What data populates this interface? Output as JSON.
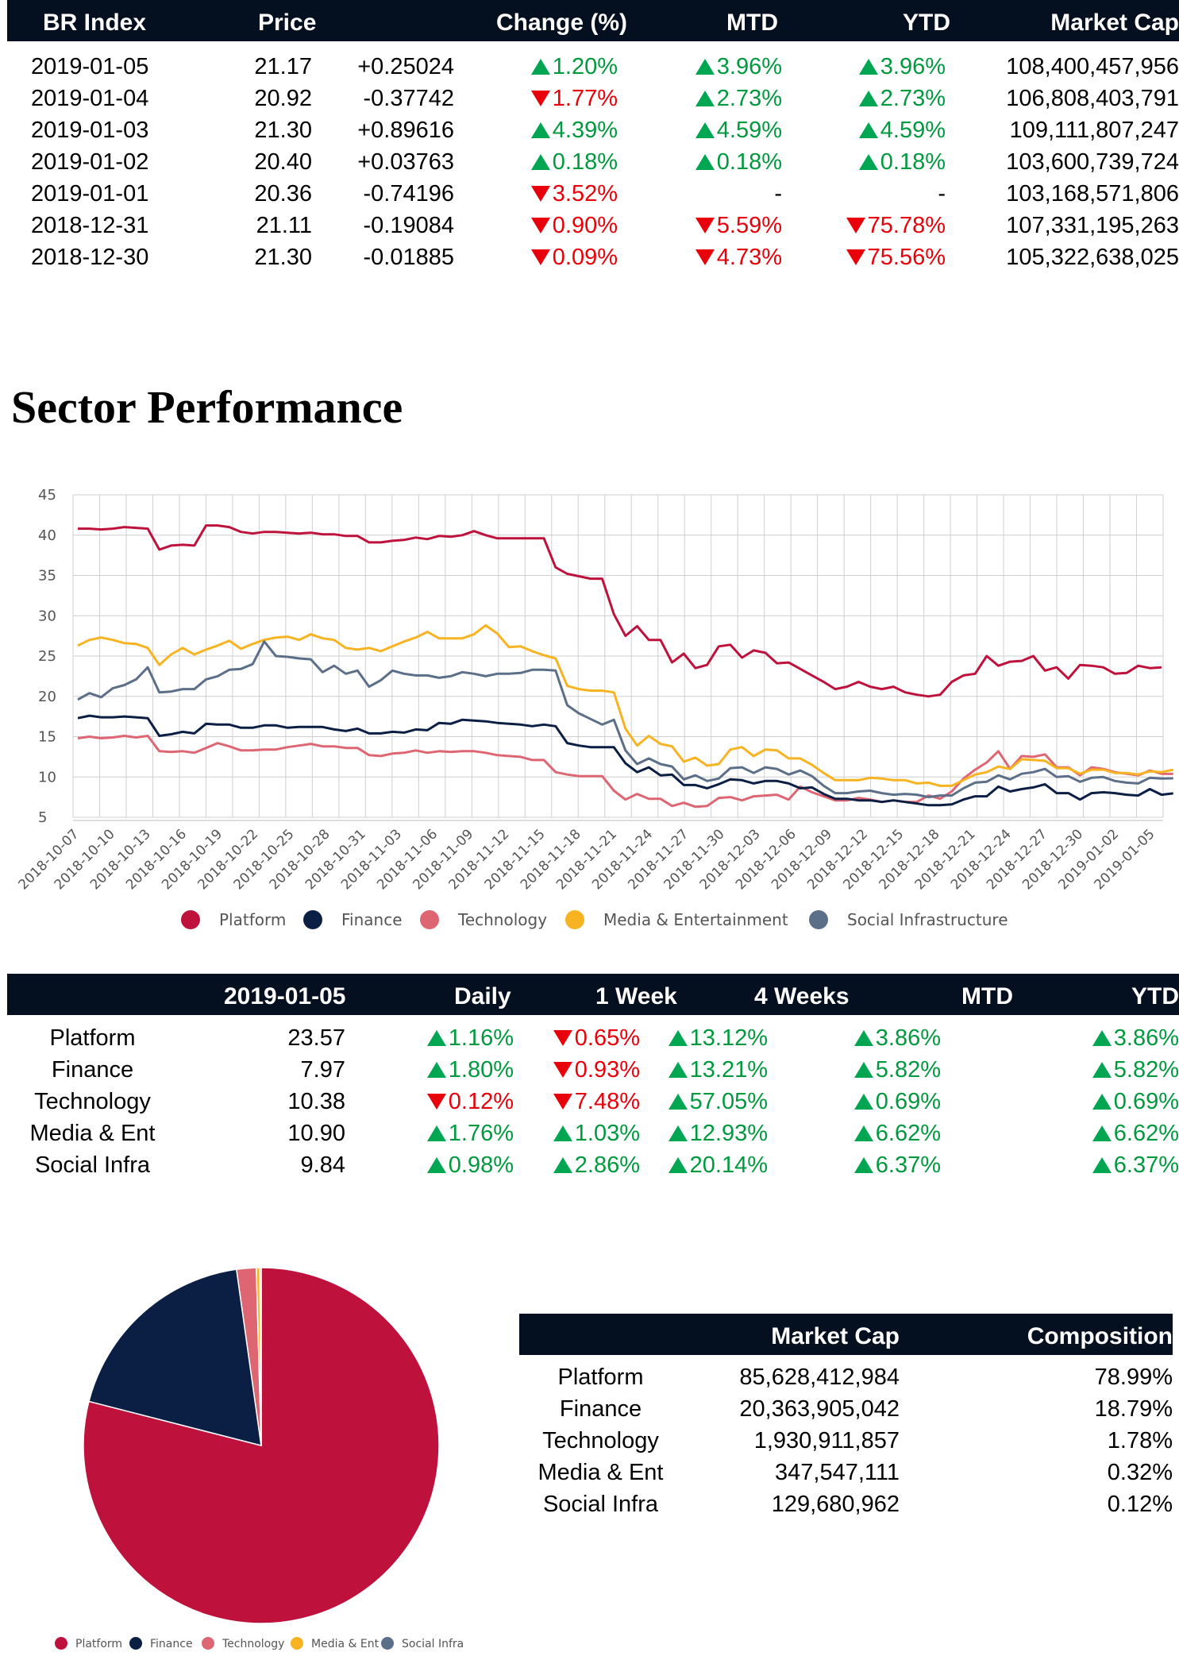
{
  "index_table": {
    "headers": [
      "BR Index",
      "Price",
      "Change (%)",
      "MTD",
      "YTD",
      "Market Cap"
    ],
    "rows": [
      {
        "date": "2019-01-05",
        "price": "21.17",
        "change": "+0.25024",
        "pct": "1.20%",
        "pct_dir": "up",
        "mtd": "3.96%",
        "mtd_dir": "up",
        "ytd": "3.96%",
        "ytd_dir": "up",
        "cap": "108,400,457,956"
      },
      {
        "date": "2019-01-04",
        "price": "20.92",
        "change": "-0.37742",
        "pct": "1.77%",
        "pct_dir": "down",
        "mtd": "2.73%",
        "mtd_dir": "up",
        "ytd": "2.73%",
        "ytd_dir": "up",
        "cap": "106,808,403,791"
      },
      {
        "date": "2019-01-03",
        "price": "21.30",
        "change": "+0.89616",
        "pct": "4.39%",
        "pct_dir": "up",
        "mtd": "4.59%",
        "mtd_dir": "up",
        "ytd": "4.59%",
        "ytd_dir": "up",
        "cap": "109,111,807,247"
      },
      {
        "date": "2019-01-02",
        "price": "20.40",
        "change": "+0.03763",
        "pct": "0.18%",
        "pct_dir": "up",
        "mtd": "0.18%",
        "mtd_dir": "up",
        "ytd": "0.18%",
        "ytd_dir": "up",
        "cap": "103,600,739,724"
      },
      {
        "date": "2019-01-01",
        "price": "20.36",
        "change": "-0.74196",
        "pct": "3.52%",
        "pct_dir": "down",
        "mtd": "-",
        "mtd_dir": "none",
        "ytd": "-",
        "ytd_dir": "none",
        "cap": "103,168,571,806"
      },
      {
        "date": "2018-12-31",
        "price": "21.11",
        "change": "-0.19084",
        "pct": "0.90%",
        "pct_dir": "down",
        "mtd": "5.59%",
        "mtd_dir": "down",
        "ytd": "75.78%",
        "ytd_dir": "down",
        "cap": "107,331,195,263"
      },
      {
        "date": "2018-12-30",
        "price": "21.30",
        "change": "-0.01885",
        "pct": "0.09%",
        "pct_dir": "down",
        "mtd": "4.73%",
        "mtd_dir": "down",
        "ytd": "75.56%",
        "ytd_dir": "down",
        "cap": "105,322,638,025"
      }
    ]
  },
  "section_title": "Sector Performance",
  "colors": {
    "header_bg": "#040f1f",
    "up": "#009a3e",
    "down": "#e8000b",
    "platform": "#be123c",
    "finance": "#0b1f45",
    "technology": "#de6672",
    "media": "#f7b321",
    "social": "#5c6f88"
  },
  "sector_table": {
    "headers": [
      "",
      "2019-01-05",
      "Daily",
      "1 Week",
      "4 Weeks",
      "MTD",
      "YTD"
    ],
    "rows": [
      {
        "name": "Platform",
        "value": "23.57",
        "daily": "1.16%",
        "daily_dir": "up",
        "week": "0.65%",
        "week_dir": "down",
        "weeks4": "13.12%",
        "weeks4_dir": "up",
        "mtd": "3.86%",
        "mtd_dir": "up",
        "ytd": "3.86%",
        "ytd_dir": "up"
      },
      {
        "name": "Finance",
        "value": "7.97",
        "daily": "1.80%",
        "daily_dir": "up",
        "week": "0.93%",
        "week_dir": "down",
        "weeks4": "13.21%",
        "weeks4_dir": "up",
        "mtd": "5.82%",
        "mtd_dir": "up",
        "ytd": "5.82%",
        "ytd_dir": "up"
      },
      {
        "name": "Technology",
        "value": "10.38",
        "daily": "0.12%",
        "daily_dir": "down",
        "week": "7.48%",
        "week_dir": "down",
        "weeks4": "57.05%",
        "weeks4_dir": "up",
        "mtd": "0.69%",
        "mtd_dir": "up",
        "ytd": "0.69%",
        "ytd_dir": "up"
      },
      {
        "name": "Media & Ent",
        "value": "10.90",
        "daily": "1.76%",
        "daily_dir": "up",
        "week": "1.03%",
        "week_dir": "up",
        "weeks4": "12.93%",
        "weeks4_dir": "up",
        "mtd": "6.62%",
        "mtd_dir": "up",
        "ytd": "6.62%",
        "ytd_dir": "up"
      },
      {
        "name": "Social Infra",
        "value": "9.84",
        "daily": "0.98%",
        "daily_dir": "up",
        "week": "2.86%",
        "week_dir": "up",
        "weeks4": "20.14%",
        "weeks4_dir": "up",
        "mtd": "6.37%",
        "mtd_dir": "up",
        "ytd": "6.37%",
        "ytd_dir": "up"
      }
    ]
  },
  "cap_table": {
    "headers": [
      "",
      "Market Cap",
      "Composition"
    ],
    "rows": [
      {
        "name": "Platform",
        "cap": "85,628,412,984",
        "comp": "78.99%"
      },
      {
        "name": "Finance",
        "cap": "20,363,905,042",
        "comp": "18.79%"
      },
      {
        "name": "Technology",
        "cap": "1,930,911,857",
        "comp": "1.78%"
      },
      {
        "name": "Media & Ent",
        "cap": "347,547,111",
        "comp": "0.32%"
      },
      {
        "name": "Social Infra",
        "cap": "129,680,962",
        "comp": "0.12%"
      }
    ]
  },
  "chart_data": [
    {
      "type": "line",
      "title": "Sector Performance",
      "xlabel": "",
      "ylabel": "",
      "ylim": [
        5,
        45
      ],
      "yticks": [
        5,
        10,
        15,
        20,
        25,
        30,
        35,
        40,
        45
      ],
      "x_tick_labels": [
        "2018-10-07",
        "2018-10-10",
        "2018-10-13",
        "2018-10-16",
        "2018-10-19",
        "2018-10-22",
        "2018-10-25",
        "2018-10-28",
        "2018-10-31",
        "2018-11-03",
        "2018-11-06",
        "2018-11-09",
        "2018-11-12",
        "2018-11-15",
        "2018-11-18",
        "2018-11-21",
        "2018-11-24",
        "2018-11-27",
        "2018-11-30",
        "2018-12-03",
        "2018-12-06",
        "2018-12-09",
        "2018-12-12",
        "2018-12-15",
        "2018-12-18",
        "2018-12-21",
        "2018-12-24",
        "2018-12-27",
        "2018-12-30",
        "2019-01-02",
        "2019-01-05"
      ],
      "grid": true,
      "legend_position": "bottom",
      "series": [
        {
          "name": "Platform",
          "color": "#be123c",
          "values": [
            40.8,
            40.8,
            40.7,
            40.8,
            41.0,
            40.9,
            40.8,
            38.2,
            38.7,
            38.8,
            38.7,
            41.2,
            41.2,
            41.0,
            40.4,
            40.2,
            40.4,
            40.4,
            40.3,
            40.2,
            40.3,
            40.1,
            40.1,
            39.9,
            39.9,
            39.1,
            39.1,
            39.3,
            39.4,
            39.7,
            39.5,
            39.9,
            39.8,
            40.0,
            40.5,
            40.0,
            39.6,
            39.6,
            39.6,
            39.6,
            39.6,
            36.0,
            35.2,
            34.9,
            34.6,
            34.6,
            30.2,
            27.5,
            28.7,
            27.0,
            27.0,
            24.2,
            25.3,
            23.5,
            23.9,
            26.2,
            26.4,
            24.8,
            25.7,
            25.4,
            24.1,
            24.2,
            23.4,
            22.6,
            21.8,
            20.9,
            21.2,
            21.8,
            21.2,
            20.9,
            21.2,
            20.5,
            20.2,
            20.0,
            20.2,
            21.8,
            22.6,
            22.8,
            25.0,
            23.8,
            24.3,
            24.4,
            25.0,
            23.2,
            23.6,
            22.2,
            23.9,
            23.8,
            23.6,
            22.8,
            22.9,
            23.8,
            23.5,
            23.6
          ]
        },
        {
          "name": "Finance",
          "color": "#0b1f45",
          "values": [
            17.3,
            17.6,
            17.4,
            17.4,
            17.5,
            17.4,
            17.3,
            15.1,
            15.3,
            15.6,
            15.4,
            16.6,
            16.5,
            16.5,
            16.1,
            16.1,
            16.4,
            16.4,
            16.1,
            16.2,
            16.2,
            16.2,
            15.9,
            15.7,
            16.0,
            15.4,
            15.4,
            15.6,
            15.5,
            15.9,
            15.8,
            16.7,
            16.6,
            17.1,
            17.0,
            16.9,
            16.7,
            16.6,
            16.5,
            16.3,
            16.5,
            16.3,
            14.2,
            13.9,
            13.7,
            13.7,
            13.7,
            11.7,
            10.6,
            11.2,
            10.2,
            10.3,
            9.0,
            9.0,
            8.6,
            9.1,
            9.7,
            9.6,
            9.2,
            9.5,
            9.5,
            9.2,
            8.6,
            8.7,
            7.9,
            7.3,
            7.3,
            7.1,
            7.1,
            6.9,
            7.1,
            6.9,
            6.7,
            6.5,
            6.5,
            6.6,
            7.2,
            7.6,
            7.6,
            8.8,
            8.2,
            8.5,
            8.7,
            9.1,
            8.0,
            8.0,
            7.2,
            8.0,
            8.1,
            8.0,
            7.8,
            7.7,
            8.5,
            7.8,
            7.97
          ]
        },
        {
          "name": "Technology",
          "color": "#de6672",
          "values": [
            14.8,
            15.0,
            14.8,
            14.9,
            15.1,
            14.9,
            15.1,
            13.2,
            13.1,
            13.2,
            13.0,
            13.6,
            14.2,
            13.8,
            13.3,
            13.3,
            13.4,
            13.4,
            13.7,
            13.9,
            14.1,
            13.8,
            13.8,
            13.6,
            13.6,
            12.7,
            12.6,
            12.9,
            13.0,
            13.3,
            13.0,
            13.2,
            13.1,
            13.2,
            13.2,
            13.0,
            12.7,
            12.6,
            12.5,
            12.1,
            12.1,
            10.6,
            10.3,
            10.1,
            10.1,
            10.1,
            8.3,
            7.2,
            7.9,
            7.3,
            7.3,
            6.4,
            6.8,
            6.3,
            6.4,
            7.4,
            7.5,
            7.1,
            7.6,
            7.7,
            7.8,
            7.2,
            8.8,
            8.1,
            7.6,
            7.1,
            7.1,
            7.4,
            7.2,
            6.9,
            7.1,
            6.9,
            6.9,
            7.7,
            7.3,
            8.2,
            9.8,
            10.9,
            11.8,
            13.2,
            11.0,
            12.6,
            12.5,
            12.8,
            11.2,
            11.2,
            10.2,
            11.2,
            11.0,
            10.6,
            10.4,
            10.2,
            10.8,
            10.4,
            10.38
          ]
        },
        {
          "name": "Media & Entertainment",
          "color": "#f7b321",
          "values": [
            26.3,
            27.0,
            27.3,
            27.0,
            26.6,
            26.5,
            26.0,
            23.9,
            25.2,
            26.0,
            25.2,
            25.8,
            26.3,
            26.9,
            25.9,
            26.5,
            27.0,
            27.3,
            27.4,
            27.0,
            27.7,
            27.2,
            27.0,
            26.0,
            25.8,
            26.0,
            25.6,
            26.2,
            26.8,
            27.3,
            28.0,
            27.2,
            27.2,
            27.2,
            27.7,
            28.8,
            27.8,
            26.1,
            26.2,
            25.6,
            25.1,
            24.7,
            21.3,
            20.9,
            20.7,
            20.7,
            20.5,
            16.0,
            13.9,
            15.1,
            14.1,
            13.8,
            11.9,
            12.4,
            11.4,
            11.6,
            13.4,
            13.7,
            12.6,
            13.4,
            13.3,
            12.3,
            12.3,
            11.5,
            10.5,
            9.6,
            9.6,
            9.6,
            9.9,
            9.8,
            9.6,
            9.6,
            9.2,
            9.3,
            8.9,
            8.9,
            9.6,
            10.3,
            10.6,
            11.3,
            11.0,
            12.2,
            12.1,
            12.0,
            11.1,
            11.1,
            10.4,
            10.9,
            10.9,
            10.5,
            10.5,
            10.3,
            10.7,
            10.6,
            10.9
          ]
        },
        {
          "name": "Social Infrastructure",
          "color": "#5c6f88",
          "values": [
            19.6,
            20.4,
            19.9,
            21.0,
            21.4,
            22.1,
            23.6,
            20.5,
            20.6,
            20.9,
            20.9,
            22.1,
            22.5,
            23.3,
            23.4,
            24.0,
            26.8,
            25.0,
            24.9,
            24.7,
            24.6,
            23.0,
            23.8,
            22.8,
            23.2,
            21.2,
            22.0,
            23.2,
            22.8,
            22.6,
            22.6,
            22.3,
            22.5,
            23.0,
            22.8,
            22.5,
            22.8,
            22.8,
            22.9,
            23.3,
            23.3,
            23.2,
            18.9,
            17.9,
            17.2,
            16.5,
            17.1,
            13.3,
            11.6,
            12.3,
            11.6,
            11.3,
            9.7,
            10.2,
            9.5,
            9.8,
            11.1,
            11.2,
            10.5,
            11.2,
            11.0,
            10.3,
            10.8,
            10.1,
            8.9,
            8.0,
            8.0,
            8.2,
            8.3,
            8.0,
            7.8,
            7.9,
            7.8,
            7.5,
            7.7,
            7.7,
            8.6,
            9.3,
            9.4,
            10.2,
            9.7,
            10.4,
            10.6,
            11.0,
            10.0,
            10.1,
            9.4,
            9.9,
            10.0,
            9.5,
            9.3,
            9.2,
            9.9,
            9.8,
            9.84
          ]
        }
      ]
    },
    {
      "type": "pie",
      "title": "",
      "categories": [
        "Platform",
        "Finance",
        "Technology",
        "Media & Ent",
        "Social Infra"
      ],
      "values": [
        78.99,
        18.79,
        1.78,
        0.32,
        0.12
      ],
      "colors": [
        "#be123c",
        "#0b1f45",
        "#de6672",
        "#f7b321",
        "#5c6f88"
      ],
      "legend_position": "bottom"
    }
  ]
}
